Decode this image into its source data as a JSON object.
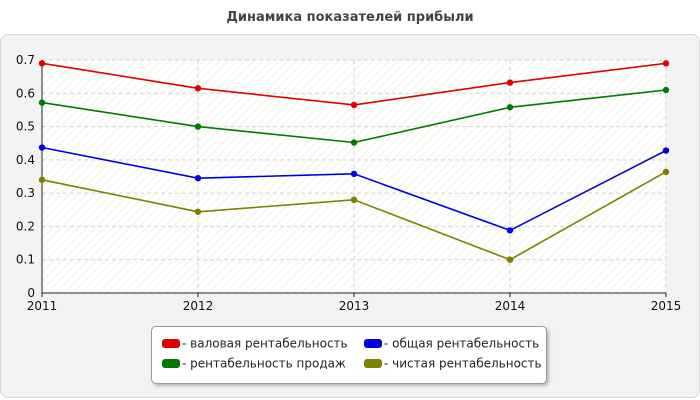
{
  "chart_data": {
    "type": "line",
    "title": "Динамика показателей прибыли",
    "x": [
      "2011",
      "2012",
      "2013",
      "2014",
      "2015"
    ],
    "ylim": [
      0,
      0.7
    ],
    "yticks": [
      "0",
      "0.1",
      "0.2",
      "0.3",
      "0.4",
      "0.5",
      "0.6",
      "0.7"
    ],
    "grid": true,
    "legend_position": "bottom-center",
    "series": [
      {
        "name": "- валовая рентабельность",
        "color": "#e00000",
        "values": [
          0.69,
          0.615,
          0.565,
          0.632,
          0.69
        ]
      },
      {
        "name": "- общая рентабельность",
        "color": "#0000e0",
        "values": [
          0.437,
          0.345,
          0.358,
          0.188,
          0.428
        ]
      },
      {
        "name": "- рентабельность продаж",
        "color": "#007a00",
        "values": [
          0.572,
          0.5,
          0.452,
          0.558,
          0.61
        ]
      },
      {
        "name": "- чистая рентабельность",
        "color": "#7f7f00",
        "values": [
          0.34,
          0.244,
          0.28,
          0.1,
          0.364
        ]
      }
    ]
  }
}
